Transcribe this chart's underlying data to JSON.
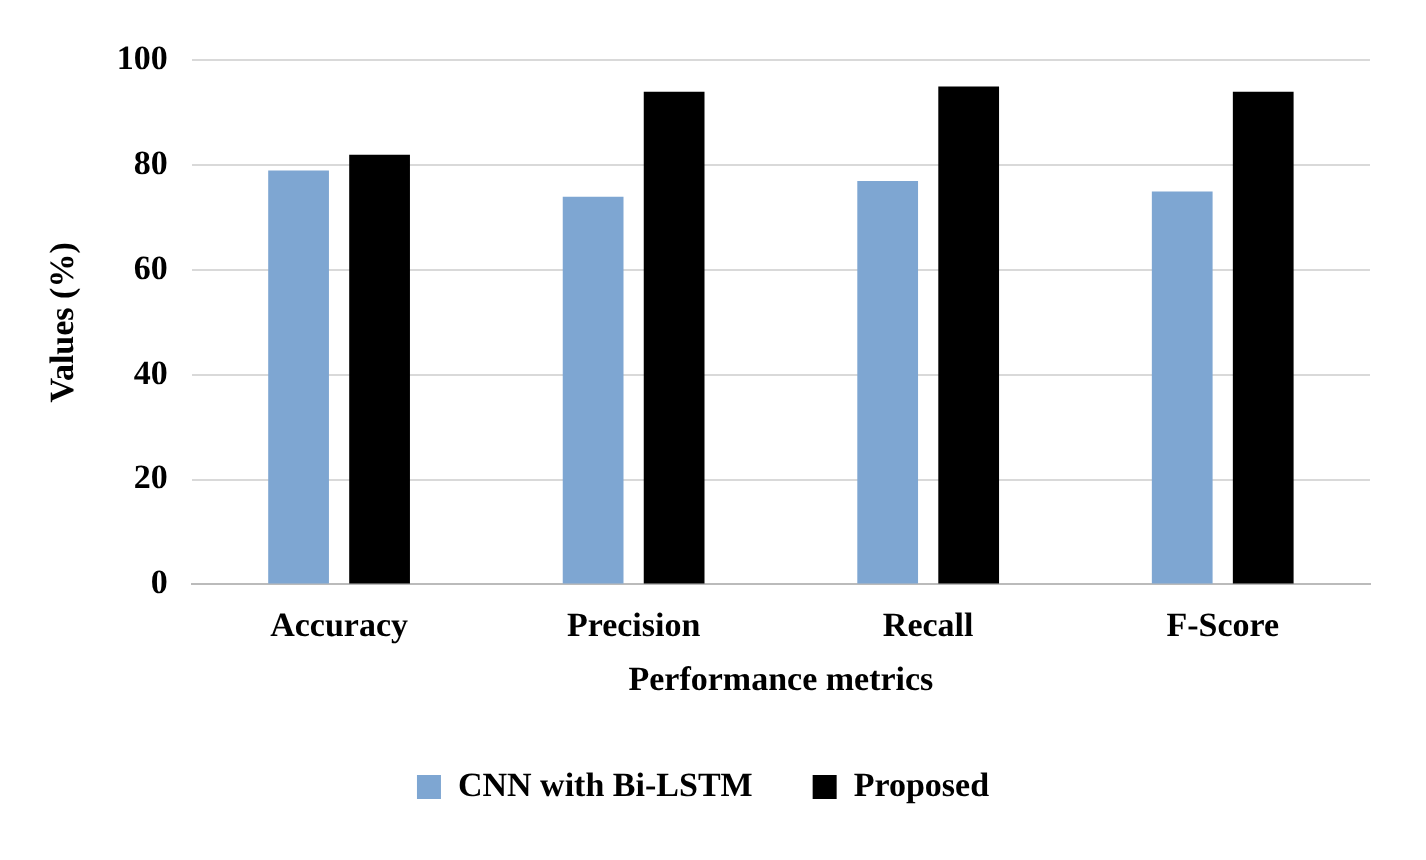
{
  "chart_data": {
    "type": "bar",
    "xlabel": "Performance metrics",
    "ylabel": "Values (%)",
    "categories": [
      "Accuracy",
      "Precision",
      "Recall",
      "F-Score"
    ],
    "series": [
      {
        "name": "CNN with Bi-LSTM",
        "color": "#7ea6d2",
        "values": [
          79,
          74,
          77,
          75
        ]
      },
      {
        "name": "Proposed",
        "color": "#000000",
        "values": [
          82,
          94,
          95,
          94
        ]
      }
    ],
    "ylim": [
      0,
      100
    ],
    "yticks": [
      0,
      20,
      40,
      60,
      80,
      100
    ],
    "grid": "y",
    "legend": "bottom"
  }
}
